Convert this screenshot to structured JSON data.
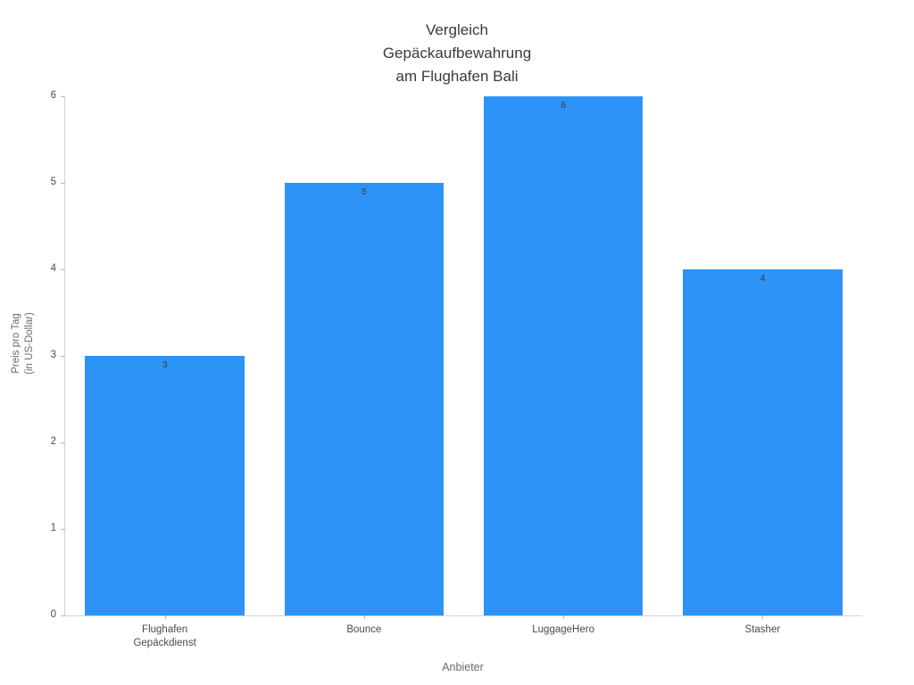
{
  "chart_data": {
    "type": "bar",
    "title": "Vergleich\nGepäckaufbewahrung\nam Flughafen Bali",
    "xlabel": "Anbieter",
    "ylabel": "Preis pro Tag\n(in US-Dollar)",
    "categories": [
      "Flughafen\nGepäckdienst",
      "Bounce",
      "LuggageHero",
      "Stasher"
    ],
    "values": [
      3,
      5,
      6,
      4
    ],
    "value_labels": [
      "3",
      "5",
      "6",
      "4"
    ],
    "ylim": [
      0,
      6
    ],
    "yticks": [
      0,
      1,
      2,
      3,
      4,
      5,
      6
    ],
    "bar_color": "#2e93f7",
    "value_label_color": "#3c3c3c",
    "axis_color": "#d4d4d4",
    "grid": false,
    "legend_position": "none",
    "background_color": "#ffffff"
  }
}
